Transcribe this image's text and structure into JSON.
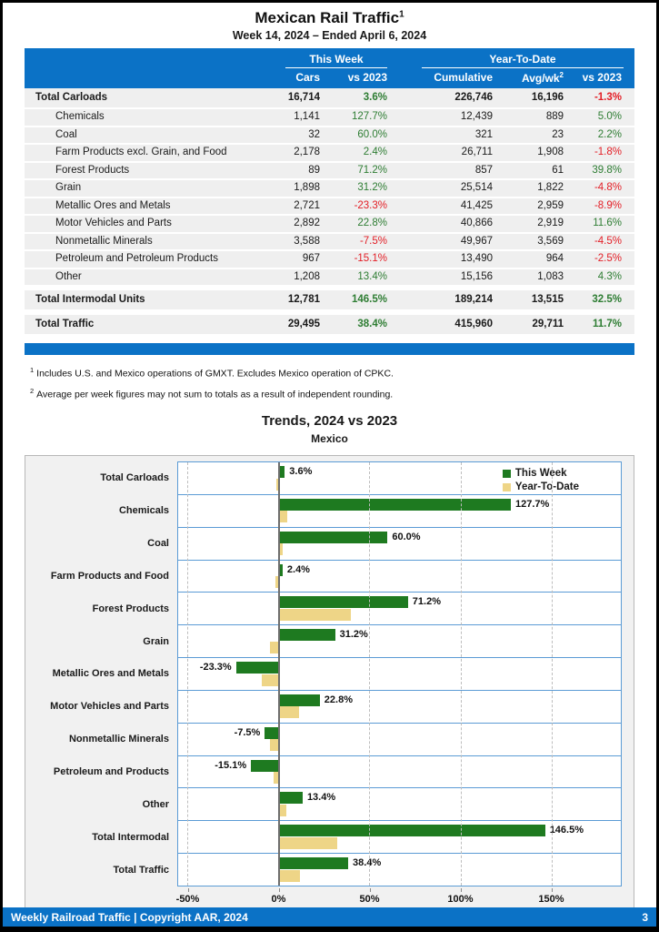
{
  "header": {
    "title": "Mexican Rail Traffic",
    "title_sup": "1",
    "subtitle": "Week 14, 2024 – Ended April 6, 2024"
  },
  "table": {
    "group_this_week": "This Week",
    "group_ytd": "Year-To-Date",
    "col_cars": "Cars",
    "col_vs2023_week": "vs 2023",
    "col_cumulative": "Cumulative",
    "col_avgwk": "Avg/wk",
    "col_avgwk_sup": "2",
    "col_vs2023_ytd": "vs 2023",
    "rows": [
      {
        "label": "Total Carloads",
        "bold": true,
        "indent": false,
        "cars": "16,714",
        "vs_week": "3.6%",
        "cumulative": "226,746",
        "avg_wk": "16,196",
        "vs_ytd": "-1.3%"
      },
      {
        "label": "Chemicals",
        "bold": false,
        "indent": true,
        "cars": "1,141",
        "vs_week": "127.7%",
        "cumulative": "12,439",
        "avg_wk": "889",
        "vs_ytd": "5.0%"
      },
      {
        "label": "Coal",
        "bold": false,
        "indent": true,
        "cars": "32",
        "vs_week": "60.0%",
        "cumulative": "321",
        "avg_wk": "23",
        "vs_ytd": "2.2%"
      },
      {
        "label": "Farm Products excl. Grain, and Food",
        "bold": false,
        "indent": true,
        "cars": "2,178",
        "vs_week": "2.4%",
        "cumulative": "26,711",
        "avg_wk": "1,908",
        "vs_ytd": "-1.8%"
      },
      {
        "label": "Forest Products",
        "bold": false,
        "indent": true,
        "cars": "89",
        "vs_week": "71.2%",
        "cumulative": "857",
        "avg_wk": "61",
        "vs_ytd": "39.8%"
      },
      {
        "label": "Grain",
        "bold": false,
        "indent": true,
        "cars": "1,898",
        "vs_week": "31.2%",
        "cumulative": "25,514",
        "avg_wk": "1,822",
        "vs_ytd": "-4.8%"
      },
      {
        "label": "Metallic Ores and Metals",
        "bold": false,
        "indent": true,
        "cars": "2,721",
        "vs_week": "-23.3%",
        "cumulative": "41,425",
        "avg_wk": "2,959",
        "vs_ytd": "-8.9%"
      },
      {
        "label": "Motor Vehicles and Parts",
        "bold": false,
        "indent": true,
        "cars": "2,892",
        "vs_week": "22.8%",
        "cumulative": "40,866",
        "avg_wk": "2,919",
        "vs_ytd": "11.6%"
      },
      {
        "label": "Nonmetallic Minerals",
        "bold": false,
        "indent": true,
        "cars": "3,588",
        "vs_week": "-7.5%",
        "cumulative": "49,967",
        "avg_wk": "3,569",
        "vs_ytd": "-4.5%"
      },
      {
        "label": "Petroleum and Petroleum Products",
        "bold": false,
        "indent": true,
        "cars": "967",
        "vs_week": "-15.1%",
        "cumulative": "13,490",
        "avg_wk": "964",
        "vs_ytd": "-2.5%"
      },
      {
        "label": "Other",
        "bold": false,
        "indent": true,
        "cars": "1,208",
        "vs_week": "13.4%",
        "cumulative": "15,156",
        "avg_wk": "1,083",
        "vs_ytd": "4.3%"
      },
      {
        "label": "Total Intermodal Units",
        "bold": true,
        "indent": false,
        "cars": "12,781",
        "vs_week": "146.5%",
        "cumulative": "189,214",
        "avg_wk": "13,515",
        "vs_ytd": "32.5%"
      },
      {
        "label": "Total Traffic",
        "bold": true,
        "indent": false,
        "cars": "29,495",
        "vs_week": "38.4%",
        "cumulative": "415,960",
        "avg_wk": "29,711",
        "vs_ytd": "11.7%"
      }
    ]
  },
  "footnotes": [
    {
      "sup": "1",
      "text": "Includes U.S. and Mexico operations of GMXT. Excludes Mexico operation of CPKC."
    },
    {
      "sup": "2",
      "text": "Average per week figures may not sum to totals as a result of independent rounding."
    }
  ],
  "chart_data": {
    "type": "bar",
    "orientation": "horizontal",
    "title": "Trends, 2024 vs 2023",
    "subtitle": "Mexico",
    "categories": [
      "Total Carloads",
      "Chemicals",
      "Coal",
      "Farm Products and Food",
      "Forest Products",
      "Grain",
      "Metallic Ores and Metals",
      "Motor Vehicles and Parts",
      "Nonmetallic Minerals",
      "Petroleum and Products",
      "Other",
      "Total Intermodal",
      "Total Traffic"
    ],
    "series": [
      {
        "name": "This Week",
        "color": "#1e7a20",
        "values": [
          3.6,
          127.7,
          60.0,
          2.4,
          71.2,
          31.2,
          -23.3,
          22.8,
          -7.5,
          -15.1,
          13.4,
          146.5,
          38.4
        ]
      },
      {
        "name": "Year-To-Date",
        "color": "#eed587",
        "values": [
          -1.3,
          5.0,
          2.2,
          -1.8,
          39.8,
          -4.8,
          -8.9,
          11.6,
          -4.5,
          -2.5,
          4.3,
          32.5,
          11.7
        ]
      }
    ],
    "bar_labels": [
      "3.6%",
      "127.7%",
      "60.0%",
      "2.4%",
      "71.2%",
      "31.2%",
      "-23.3%",
      "22.8%",
      "-7.5%",
      "-15.1%",
      "13.4%",
      "146.5%",
      "38.4%"
    ],
    "x_ticks": [
      {
        "value": -50,
        "label": "-50%"
      },
      {
        "value": 0,
        "label": "0%"
      },
      {
        "value": 50,
        "label": "50%"
      },
      {
        "value": 100,
        "label": "100%"
      },
      {
        "value": 150,
        "label": "150%"
      }
    ],
    "xlim": [
      -55,
      188
    ],
    "grid": true,
    "legend_position": "top-right"
  },
  "footer": {
    "left": "Weekly Railroad Traffic | Copyright AAR, 2024",
    "page_number": "3"
  },
  "colors": {
    "header_blue": "#0b72c6",
    "positive_green": "#2e7d33",
    "negative_red": "#e31e26",
    "bar_green": "#1e7a20",
    "bar_tan": "#eed587",
    "grid_blue": "#5b9bd5",
    "row_gray": "#efefef",
    "chart_bg": "#f1f1f1"
  }
}
